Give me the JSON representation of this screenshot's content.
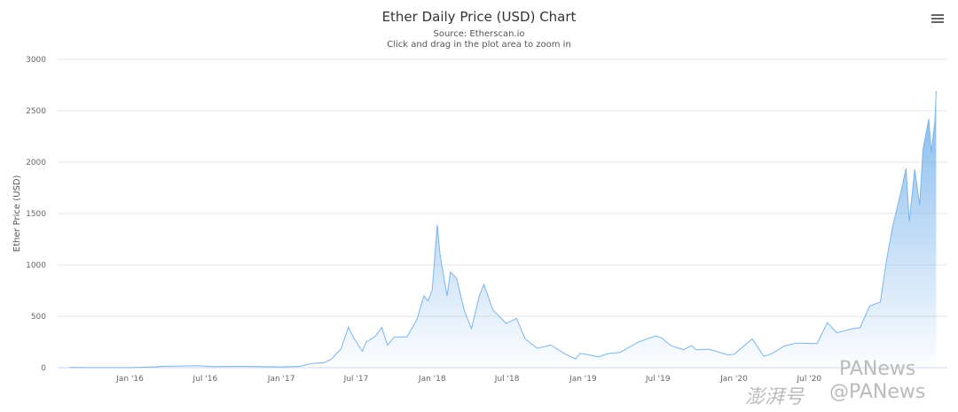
{
  "chart_data": {
    "type": "area",
    "title": "Ether Daily Price (USD) Chart",
    "subtitle": "Source: Etherscan.io",
    "hint": "Click and drag in the plot area to zoom in",
    "xlabel": "",
    "ylabel": "Ether Price (USD)",
    "ylim": [
      0,
      3000
    ],
    "xlim": [
      "2015-07-10",
      "2021-05-31"
    ],
    "yticks": [
      "0",
      "500",
      "1000",
      "1500",
      "2000",
      "2500",
      "3000"
    ],
    "xticks": [
      {
        "date": "2016-01-01",
        "label": "Jan '16"
      },
      {
        "date": "2016-07-01",
        "label": "Jul '16"
      },
      {
        "date": "2017-01-01",
        "label": "Jan '17"
      },
      {
        "date": "2017-07-01",
        "label": "Jul '17"
      },
      {
        "date": "2018-01-01",
        "label": "Jan '18"
      },
      {
        "date": "2018-07-01",
        "label": "Jul '18"
      },
      {
        "date": "2019-01-01",
        "label": "Jan '19"
      },
      {
        "date": "2019-07-01",
        "label": "Jul '19"
      },
      {
        "date": "2020-01-01",
        "label": "Jan '20"
      },
      {
        "date": "2020-07-01",
        "label": "Jul '20"
      }
    ],
    "grid": true,
    "legend": "none",
    "color": "#7cb5ec",
    "points": [
      [
        "2015-08-07",
        3
      ],
      [
        "2015-10-01",
        0.7
      ],
      [
        "2016-01-01",
        1
      ],
      [
        "2016-03-01",
        8
      ],
      [
        "2016-03-15",
        13
      ],
      [
        "2016-06-15",
        20
      ],
      [
        "2016-07-15",
        11
      ],
      [
        "2016-10-01",
        13
      ],
      [
        "2017-01-01",
        8
      ],
      [
        "2017-02-15",
        13
      ],
      [
        "2017-03-15",
        40
      ],
      [
        "2017-04-15",
        50
      ],
      [
        "2017-05-01",
        80
      ],
      [
        "2017-05-25",
        180
      ],
      [
        "2017-06-12",
        395
      ],
      [
        "2017-06-25",
        290
      ],
      [
        "2017-07-16",
        160
      ],
      [
        "2017-07-25",
        250
      ],
      [
        "2017-08-15",
        300
      ],
      [
        "2017-09-01",
        390
      ],
      [
        "2017-09-15",
        220
      ],
      [
        "2017-10-01",
        300
      ],
      [
        "2017-11-01",
        300
      ],
      [
        "2017-11-25",
        470
      ],
      [
        "2017-12-12",
        700
      ],
      [
        "2017-12-22",
        650
      ],
      [
        "2018-01-01",
        760
      ],
      [
        "2018-01-13",
        1390
      ],
      [
        "2018-01-20",
        1100
      ],
      [
        "2018-02-06",
        700
      ],
      [
        "2018-02-14",
        930
      ],
      [
        "2018-03-01",
        870
      ],
      [
        "2018-03-20",
        550
      ],
      [
        "2018-04-06",
        380
      ],
      [
        "2018-04-25",
        700
      ],
      [
        "2018-05-06",
        810
      ],
      [
        "2018-05-28",
        560
      ],
      [
        "2018-06-29",
        430
      ],
      [
        "2018-07-24",
        480
      ],
      [
        "2018-08-14",
        280
      ],
      [
        "2018-09-12",
        190
      ],
      [
        "2018-10-15",
        220
      ],
      [
        "2018-11-20",
        130
      ],
      [
        "2018-12-14",
        85
      ],
      [
        "2018-12-24",
        140
      ],
      [
        "2019-01-15",
        125
      ],
      [
        "2019-02-07",
        105
      ],
      [
        "2019-03-01",
        135
      ],
      [
        "2019-04-01",
        150
      ],
      [
        "2019-05-15",
        250
      ],
      [
        "2019-06-26",
        310
      ],
      [
        "2019-07-10",
        290
      ],
      [
        "2019-08-01",
        215
      ],
      [
        "2019-09-01",
        175
      ],
      [
        "2019-09-20",
        215
      ],
      [
        "2019-10-01",
        175
      ],
      [
        "2019-11-01",
        180
      ],
      [
        "2019-12-17",
        125
      ],
      [
        "2020-01-01",
        130
      ],
      [
        "2020-02-14",
        280
      ],
      [
        "2020-03-13",
        110
      ],
      [
        "2020-04-01",
        135
      ],
      [
        "2020-05-01",
        210
      ],
      [
        "2020-06-01",
        240
      ],
      [
        "2020-07-20",
        235
      ],
      [
        "2020-08-14",
        440
      ],
      [
        "2020-09-05",
        340
      ],
      [
        "2020-10-15",
        380
      ],
      [
        "2020-11-01",
        390
      ],
      [
        "2020-11-24",
        600
      ],
      [
        "2020-12-20",
        640
      ],
      [
        "2021-01-04",
        1050
      ],
      [
        "2021-01-19",
        1380
      ],
      [
        "2021-02-10",
        1750
      ],
      [
        "2021-02-20",
        1940
      ],
      [
        "2021-02-28",
        1420
      ],
      [
        "2021-03-13",
        1930
      ],
      [
        "2021-03-25",
        1580
      ],
      [
        "2021-04-02",
        2120
      ],
      [
        "2021-04-16",
        2420
      ],
      [
        "2021-04-22",
        2100
      ],
      [
        "2021-05-01",
        2400
      ],
      [
        "2021-05-04",
        2690
      ]
    ]
  },
  "watermark": {
    "line1": "PANews",
    "line2": "@PANews",
    "prefix": "澎湃号"
  },
  "icons": {
    "menu": "hamburger-menu-icon"
  }
}
